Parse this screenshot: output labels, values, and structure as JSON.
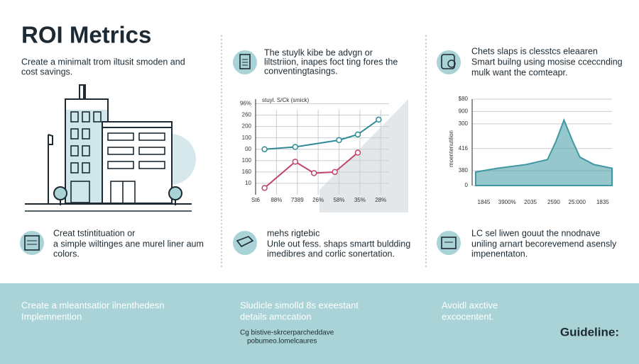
{
  "title": "ROI Metrics",
  "subtitle": [
    "Create a minimalt trom iltusit smoden and",
    "cost savings."
  ],
  "middle_top": [
    "The stuylk kibe be advgn or",
    "liltstriion, inapes foct ting fores the",
    "conventingtasings."
  ],
  "right_top": [
    "Chets slaps is clesstcs eleaaren",
    "Smart builng using mosise cceccnding",
    "mulk want the comteapr."
  ],
  "left_bottom": [
    "Creat tstintituation or",
    "a simple wiltinges ane murel liner aum",
    "colors."
  ],
  "middle_bottom": [
    "mehs rigtebic",
    "Unle out fess. shaps smartt buldding",
    "imedibres and corlic sonertation."
  ],
  "right_bottom": [
    "LC sel liwen gouut the nnodnave",
    "uniling arnart becorevemend asensly",
    "impenentaton."
  ],
  "band": {
    "left": [
      "Create a mleantsatior ilnenthedesn",
      "Implemnention"
    ],
    "middle": [
      "Sludicle simolld 8s exeestant",
      "details amccation"
    ],
    "middle_note": [
      "Cg bistive-skrcerparcheddave",
      "pobumeo.lomelcaures"
    ],
    "right": [
      "Avoidl axctive",
      "excocentent."
    ],
    "guideline": "Guideline:"
  },
  "charts": [
    {
      "type": "line",
      "title": "stuyl. S/Ck (smick)",
      "xlim": [
        0,
        6.4
      ],
      "ylim": [
        -1,
        7.4
      ],
      "yticks": [
        {
          "value": 7,
          "label": "96%"
        },
        {
          "value": 6,
          "label": "260"
        },
        {
          "value": 5,
          "label": "200"
        },
        {
          "value": 4,
          "label": "100"
        },
        {
          "value": 3,
          "label": "00"
        },
        {
          "value": 2,
          "label": "100"
        },
        {
          "value": 1,
          "label": "160"
        },
        {
          "value": 0,
          "label": "10"
        }
      ],
      "xticks": [
        {
          "value": 0,
          "label": "St6"
        },
        {
          "value": 1,
          "label": "88%"
        },
        {
          "value": 2,
          "label": "7389"
        },
        {
          "value": 3,
          "label": "26%"
        },
        {
          "value": 4,
          "label": "58%"
        },
        {
          "value": 5,
          "label": "35%"
        },
        {
          "value": 6,
          "label": "28%"
        }
      ],
      "grid": true,
      "series": [
        {
          "color": "#2f8a96",
          "x": [
            0.43,
            1.9,
            4.0,
            4.9,
            5.9
          ],
          "values": [
            3.0,
            3.2,
            3.8,
            4.3,
            5.6
          ]
        },
        {
          "color": "#c2456b",
          "x": [
            0.43,
            1.9,
            2.8,
            3.8,
            4.9
          ],
          "values": [
            -0.4,
            1.9,
            0.9,
            1.0,
            2.7
          ]
        }
      ]
    },
    {
      "type": "area",
      "y_label": "moentenutilion",
      "xlim": [
        0,
        6
      ],
      "ylim": [
        0,
        7
      ],
      "yticks": [
        {
          "value": 7,
          "label": "$80"
        },
        {
          "value": 6,
          "label": "900"
        },
        {
          "value": 5,
          "label": "300"
        },
        {
          "value": 3,
          "label": "416"
        },
        {
          "value": 1.2,
          "label": "380"
        },
        0
      ],
      "xticks": [
        {
          "value": 0.5,
          "label": "1845"
        },
        {
          "value": 1.5,
          "label": "3900%"
        },
        {
          "value": 2.5,
          "label": "2035"
        },
        {
          "value": 3.5,
          "label": "2590"
        },
        {
          "value": 4.5,
          "label": "25:000"
        },
        {
          "value": 5.6,
          "label": "1835"
        }
      ],
      "grid": true,
      "series": [
        {
          "color": "#3f99a3",
          "x": [
            0.15,
            1.08,
            2.31,
            3.23,
            3.6,
            3.94,
            4.31,
            4.62,
            5.23,
            6
          ],
          "values": [
            1.1,
            1.4,
            1.7,
            2.1,
            3.6,
            5.3,
            3.6,
            2.3,
            1.7,
            1.4
          ]
        }
      ]
    }
  ]
}
